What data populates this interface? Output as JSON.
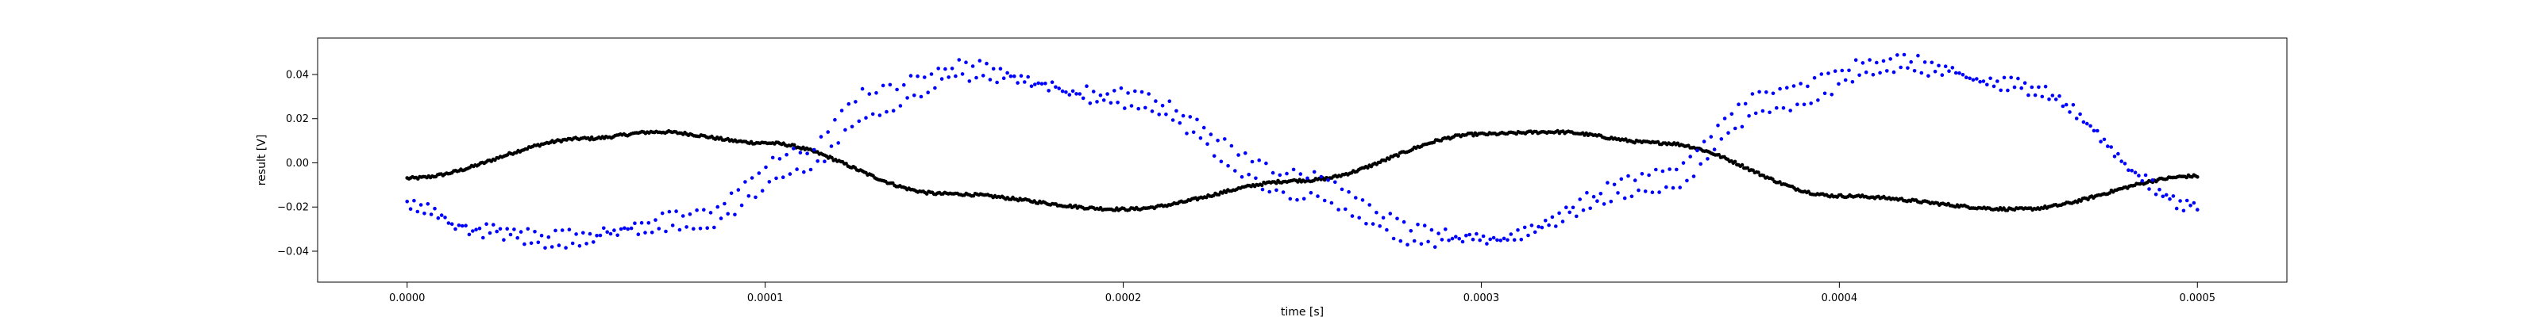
{
  "chart_data": {
    "type": "scatter",
    "title": "",
    "xlabel": "time [s]",
    "ylabel": "result [V]",
    "xlim": [
      -2.5e-05,
      0.000525
    ],
    "ylim": [
      -0.054,
      0.0565
    ],
    "grid": false,
    "xticks": [
      0.0,
      0.0001,
      0.0002,
      0.0003,
      0.0004,
      0.0005
    ],
    "xtick_labels": [
      "0.0000",
      "0.0001",
      "0.0002",
      "0.0003",
      "0.0004",
      "0.0005"
    ],
    "yticks": [
      -0.04,
      -0.02,
      0.0,
      0.02,
      0.04
    ],
    "ytick_labels": [
      "−0.04",
      "−0.02",
      "0.00",
      "0.02",
      "0.04"
    ],
    "x_range": [
      0.0,
      0.0005
    ],
    "points_per_series": 1000,
    "series": [
      {
        "color": "#000000",
        "marker_size": 2.3,
        "samples_x": [
          0.0,
          5e-05,
          7e-05,
          0.0001,
          0.00015,
          0.0002,
          0.00025,
          0.0003,
          0.00032,
          0.00035,
          0.0004,
          0.00045,
          0.0005
        ],
        "samples_y": [
          -0.007,
          0.011,
          0.014,
          0.009,
          -0.014,
          -0.021,
          -0.008,
          0.013,
          0.014,
          0.009,
          -0.015,
          -0.021,
          -0.006
        ]
      },
      {
        "color": "#0000ff",
        "marker_size": 2.3,
        "samples_x": [
          0.0,
          2e-05,
          4e-05,
          8e-05,
          0.00011,
          0.00013,
          0.000155,
          0.0002,
          0.00025,
          0.000285,
          0.0003,
          0.00035,
          0.00038,
          0.000415,
          0.00045,
          0.0005
        ],
        "samples_y": [
          -0.017,
          -0.032,
          -0.037,
          -0.023,
          0.005,
          0.033,
          0.045,
          0.026,
          -0.015,
          -0.037,
          -0.034,
          -0.005,
          0.032,
          0.048,
          0.033,
          -0.017
        ],
        "samples_y_alt": [
          -0.022,
          -0.029,
          -0.032,
          -0.03,
          -0.004,
          0.022,
          0.039,
          0.032,
          -0.005,
          -0.03,
          -0.036,
          -0.012,
          0.023,
          0.042,
          0.037,
          -0.021
        ]
      }
    ]
  }
}
